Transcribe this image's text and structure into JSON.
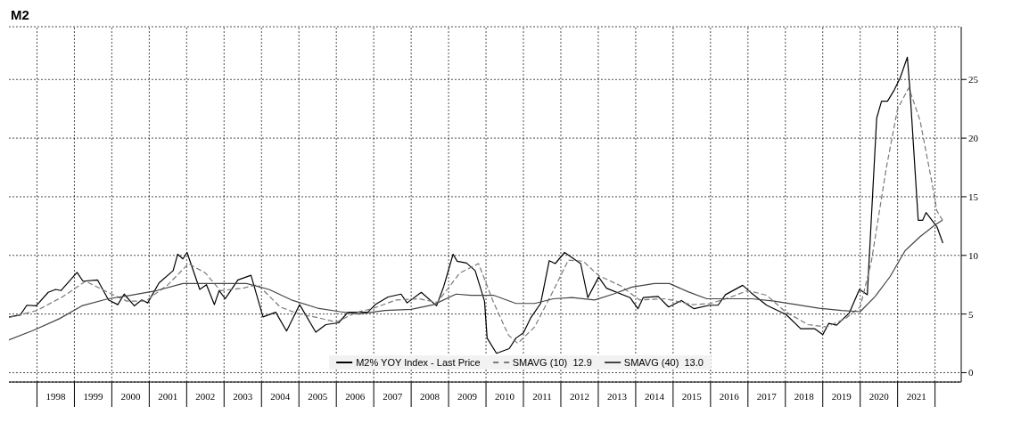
{
  "chart_data": {
    "type": "line",
    "title": "M2",
    "xlim": [
      1997.25,
      2022.7
    ],
    "ylim": [
      -0.8,
      29.5
    ],
    "yticks": [
      0,
      5,
      10,
      15,
      20,
      25
    ],
    "xticks": [
      {
        "value": 1998,
        "label": null
      },
      {
        "value": 1998.5,
        "label": "1998"
      },
      {
        "value": 1999,
        "label": null
      },
      {
        "value": 1999.5,
        "label": "1999"
      },
      {
        "value": 2000,
        "label": null
      },
      {
        "value": 2000.5,
        "label": "2000"
      },
      {
        "value": 2001,
        "label": null
      },
      {
        "value": 2001.5,
        "label": "2001"
      },
      {
        "value": 2002,
        "label": null
      },
      {
        "value": 2002.5,
        "label": "2002"
      },
      {
        "value": 2003,
        "label": null
      },
      {
        "value": 2003.5,
        "label": "2003"
      },
      {
        "value": 2004,
        "label": null
      },
      {
        "value": 2004.5,
        "label": "2004"
      },
      {
        "value": 2005,
        "label": null
      },
      {
        "value": 2005.5,
        "label": "2005"
      },
      {
        "value": 2006,
        "label": null
      },
      {
        "value": 2006.5,
        "label": "2006"
      },
      {
        "value": 2007,
        "label": null
      },
      {
        "value": 2007.5,
        "label": "2007"
      },
      {
        "value": 2008,
        "label": null
      },
      {
        "value": 2008.5,
        "label": "2008"
      },
      {
        "value": 2009,
        "label": null
      },
      {
        "value": 2009.5,
        "label": "2009"
      },
      {
        "value": 2010,
        "label": null
      },
      {
        "value": 2010.5,
        "label": "2010"
      },
      {
        "value": 2011,
        "label": null
      },
      {
        "value": 2011.5,
        "label": "2011"
      },
      {
        "value": 2012,
        "label": null
      },
      {
        "value": 2012.5,
        "label": "2012"
      },
      {
        "value": 2013,
        "label": null
      },
      {
        "value": 2013.5,
        "label": "2013"
      },
      {
        "value": 2014,
        "label": null
      },
      {
        "value": 2014.5,
        "label": "2014"
      },
      {
        "value": 2015,
        "label": null
      },
      {
        "value": 2015.5,
        "label": "2015"
      },
      {
        "value": 2016,
        "label": null
      },
      {
        "value": 2016.5,
        "label": "2016"
      },
      {
        "value": 2017,
        "label": null
      },
      {
        "value": 2017.5,
        "label": "2017"
      },
      {
        "value": 2018,
        "label": null
      },
      {
        "value": 2018.5,
        "label": "2018"
      },
      {
        "value": 2019,
        "label": null
      },
      {
        "value": 2019.5,
        "label": "2019"
      },
      {
        "value": 2020,
        "label": null
      },
      {
        "value": 2020.5,
        "label": "2020"
      },
      {
        "value": 2021,
        "label": null
      },
      {
        "value": 2021.5,
        "label": "2021"
      },
      {
        "value": 2022,
        "label": null
      }
    ],
    "grid": true,
    "legend": "bottom",
    "marker": "none",
    "series": [
      {
        "name": "M2% YOY Index - Last Price",
        "color": "#000000",
        "line_style": "solid",
        "x": [
          1997.25,
          1997.55,
          1997.73,
          1997.98,
          1998.3,
          1998.5,
          1998.64,
          1999.07,
          1999.23,
          1999.62,
          1999.91,
          2000.16,
          2000.33,
          2000.6,
          2000.8,
          2000.96,
          2001.26,
          2001.64,
          2001.76,
          2001.9,
          2002.01,
          2002.35,
          2002.53,
          2002.74,
          2002.87,
          2003.03,
          2003.37,
          2003.72,
          2004.04,
          2004.38,
          2004.67,
          2005.02,
          2005.45,
          2005.72,
          2006.06,
          2006.31,
          2006.84,
          2007.04,
          2007.38,
          2007.73,
          2007.89,
          2008.27,
          2008.68,
          2008.87,
          2009.12,
          2009.23,
          2009.48,
          2009.71,
          2009.96,
          2010.03,
          2010.28,
          2010.62,
          2010.8,
          2011.0,
          2011.2,
          2011.46,
          2011.69,
          2011.85,
          2012.1,
          2012.53,
          2012.72,
          2013.01,
          2013.22,
          2013.85,
          2014.06,
          2014.2,
          2014.6,
          2014.88,
          2015.22,
          2015.56,
          2015.97,
          2016.2,
          2016.4,
          2016.86,
          2017.09,
          2017.5,
          2018.02,
          2018.41,
          2018.78,
          2019.0,
          2019.16,
          2019.37,
          2019.71,
          2019.98,
          2020.19,
          2020.44,
          2020.57,
          2020.73,
          2020.91,
          2021.07,
          2021.26,
          2021.33,
          2021.55,
          2021.67,
          2021.76,
          2022.05,
          2022.21
        ],
        "values": [
          4.75,
          4.9,
          5.75,
          5.7,
          6.85,
          7.1,
          7.0,
          8.55,
          7.8,
          7.9,
          6.2,
          5.8,
          6.7,
          5.7,
          6.2,
          5.95,
          7.65,
          8.7,
          10.1,
          9.7,
          10.25,
          7.1,
          7.5,
          5.8,
          7.0,
          6.3,
          7.9,
          8.3,
          4.75,
          5.15,
          3.55,
          5.8,
          3.45,
          4.1,
          4.25,
          5.15,
          5.15,
          5.8,
          6.45,
          6.7,
          5.95,
          6.85,
          5.7,
          7.35,
          10.1,
          9.5,
          9.35,
          8.7,
          6.1,
          2.95,
          1.65,
          2.05,
          2.95,
          3.4,
          4.7,
          5.9,
          9.55,
          9.3,
          10.25,
          9.3,
          6.4,
          8.15,
          7.2,
          6.4,
          5.45,
          6.4,
          6.5,
          5.6,
          6.15,
          5.45,
          5.75,
          5.75,
          6.65,
          7.45,
          6.8,
          5.75,
          4.95,
          3.75,
          3.75,
          3.25,
          4.2,
          4.05,
          5.1,
          7.1,
          6.65,
          21.7,
          23.15,
          23.15,
          24.1,
          25.15,
          26.9,
          24.1,
          13.0,
          13.0,
          13.65,
          12.45,
          11.05
        ]
      },
      {
        "name": "SMAVG (10)  12.9",
        "color": "#7a7a7a",
        "line_style": "dashed",
        "x": [
          1997.25,
          1998.0,
          1998.7,
          1999.3,
          1999.8,
          2000.4,
          2000.9,
          2001.5,
          2002.05,
          2002.5,
          2002.9,
          2003.5,
          2003.9,
          2004.5,
          2005.0,
          2005.5,
          2006.0,
          2006.5,
          2007.0,
          2007.6,
          2008.2,
          2008.7,
          2009.3,
          2009.8,
          2010.2,
          2010.6,
          2010.85,
          2011.3,
          2011.8,
          2012.2,
          2012.6,
          2013.0,
          2013.6,
          2014.1,
          2014.8,
          2015.5,
          2016.0,
          2016.5,
          2017.0,
          2017.5,
          2018.0,
          2018.6,
          2019.1,
          2019.6,
          2020.0,
          2020.3,
          2020.7,
          2021.0,
          2021.3,
          2021.6,
          2021.9,
          2022.05,
          2022.2
        ],
        "values": [
          4.7,
          5.3,
          6.5,
          7.8,
          7.0,
          6.1,
          6.1,
          7.5,
          9.3,
          8.5,
          7.0,
          7.2,
          7.5,
          5.6,
          5.0,
          4.7,
          4.3,
          5.1,
          5.5,
          6.2,
          6.3,
          6.0,
          8.5,
          9.3,
          6.0,
          3.2,
          2.5,
          3.9,
          7.0,
          9.6,
          9.5,
          8.3,
          7.4,
          6.2,
          6.3,
          5.8,
          5.9,
          6.4,
          7.0,
          6.6,
          5.2,
          4.1,
          3.9,
          4.6,
          5.6,
          9.5,
          17.5,
          22.5,
          24.3,
          21.5,
          16.5,
          13.8,
          13.0
        ]
      },
      {
        "name": "SMAVG (40)  13.0",
        "color": "#444444",
        "line_style": "solid",
        "x": [
          1997.25,
          1997.9,
          1998.6,
          1999.2,
          1999.9,
          2000.5,
          2001.2,
          2001.9,
          2002.5,
          2003.0,
          2003.6,
          2004.2,
          2004.8,
          2005.5,
          2006.1,
          2006.6,
          2007.3,
          2008.0,
          2008.6,
          2009.2,
          2009.6,
          2010.2,
          2010.8,
          2011.3,
          2011.8,
          2012.3,
          2012.9,
          2013.4,
          2013.9,
          2014.5,
          2014.9,
          2015.4,
          2015.9,
          2016.5,
          2017.1,
          2017.7,
          2018.3,
          2018.9,
          2019.5,
          2020.0,
          2020.4,
          2020.8,
          2021.2,
          2021.6,
          2022.0,
          2022.2
        ],
        "values": [
          2.8,
          3.6,
          4.6,
          5.7,
          6.3,
          6.6,
          7.0,
          7.6,
          7.6,
          7.6,
          7.6,
          7.1,
          6.2,
          5.5,
          5.2,
          5.0,
          5.3,
          5.4,
          5.8,
          6.7,
          6.6,
          6.6,
          5.9,
          5.9,
          6.3,
          6.4,
          6.2,
          6.7,
          7.3,
          7.6,
          7.6,
          6.9,
          6.3,
          6.3,
          6.3,
          6.1,
          5.8,
          5.5,
          5.3,
          5.2,
          6.5,
          8.2,
          10.4,
          11.6,
          12.6,
          13.0
        ]
      }
    ]
  }
}
